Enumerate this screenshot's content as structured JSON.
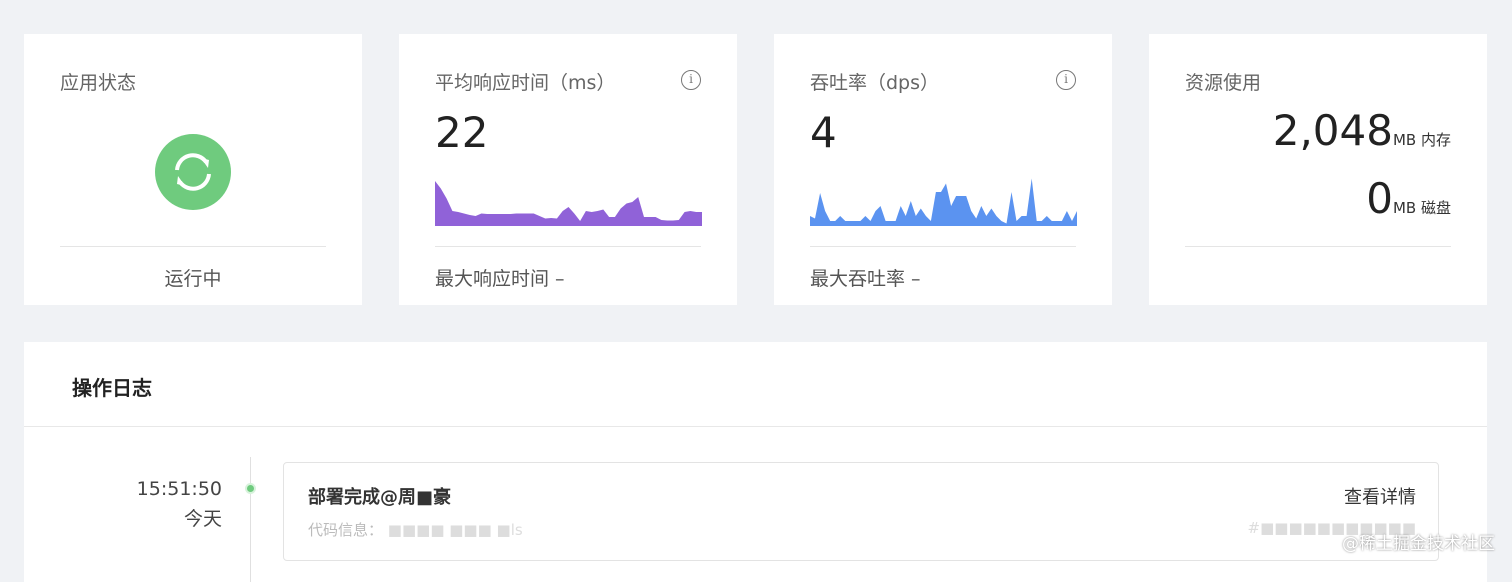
{
  "status_card": {
    "title": "应用状态",
    "icon": "sync-icon",
    "icon_color": "#6fcb7e",
    "status": "运行中"
  },
  "response_card": {
    "title": "平均响应时间（ms）",
    "value": "22",
    "footer": "最大响应时间  –",
    "color": "#9062d8",
    "sparkline": [
      90,
      75,
      55,
      30,
      28,
      25,
      22,
      20,
      25,
      24,
      24,
      24,
      24,
      24,
      25,
      25,
      25,
      25,
      20,
      15,
      16,
      15,
      30,
      38,
      25,
      10,
      30,
      28,
      30,
      33,
      18,
      18,
      35,
      45,
      48,
      58,
      18,
      18,
      18,
      12,
      11,
      11,
      12,
      28,
      30,
      28,
      28
    ]
  },
  "throughput_card": {
    "title": "吞吐率（dps）",
    "value": "4",
    "footer": "最大吞吐率  –",
    "color": "#5b93f0",
    "sparkline": [
      20,
      15,
      66,
      30,
      10,
      10,
      20,
      10,
      10,
      10,
      10,
      20,
      10,
      30,
      40,
      10,
      10,
      10,
      40,
      20,
      50,
      20,
      35,
      20,
      10,
      68,
      68,
      85,
      40,
      60,
      60,
      60,
      30,
      15,
      40,
      20,
      35,
      20,
      10,
      5,
      68,
      10,
      20,
      20,
      95,
      10,
      10,
      20,
      10,
      10,
      10,
      30,
      10,
      30
    ]
  },
  "resource_card": {
    "title": "资源使用",
    "memory_value": "2,048",
    "memory_unit": "MB 内存",
    "disk_value": "0",
    "disk_unit": "MB 磁盘"
  },
  "log": {
    "title": "操作日志",
    "entries": [
      {
        "time": "15:51:50",
        "day": "今天",
        "title": "部署完成@周■豪",
        "detail_link": "查看详情",
        "code_label": "代码信息：",
        "code_value": "■■■■  ■■■ ■ls",
        "commit": "#■■■■■■■■■■■"
      }
    ]
  },
  "watermark": "@稀土掘金技术社区"
}
